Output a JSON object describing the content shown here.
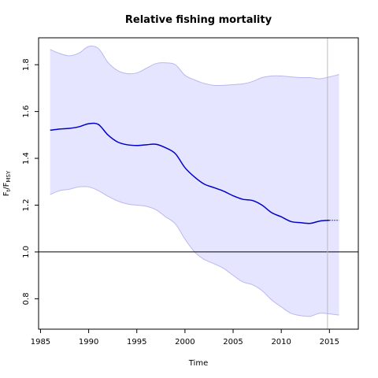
{
  "chart_data": {
    "type": "line",
    "title": "Relative fishing mortality",
    "xlabel": "Time",
    "ylabel": {
      "main": "F",
      "sub1": "t",
      "sep": "/F",
      "sub2": "MSY"
    },
    "xlim": [
      1984.8,
      2018.0
    ],
    "ylim": [
      0.67,
      1.915
    ],
    "x_ticks": [
      1985,
      1990,
      1995,
      2000,
      2005,
      2010,
      2015
    ],
    "y_ticks": [
      0.8,
      1.0,
      1.2,
      1.4,
      1.6,
      1.8
    ],
    "y_tick_labels": [
      "0.8",
      "1.0",
      "1.2",
      "1.4",
      "1.6",
      "1.8"
    ],
    "reference_line_y": 1.0,
    "vertical_line_x": 2014.8,
    "colors": {
      "line": "#0000cc",
      "band_fill": "#e5e5ff",
      "band_edge": "#b8b8f0",
      "vline": "#bbbbbb",
      "axis": "#000000"
    },
    "series": [
      {
        "role": "estimate",
        "x": [
          1986,
          1987,
          1988,
          1989,
          1990,
          1991,
          1992,
          1993,
          1994,
          1995,
          1996,
          1997,
          1998,
          1999,
          2000,
          2001,
          2002,
          2003,
          2004,
          2005,
          2006,
          2007,
          2008,
          2009,
          2010,
          2011,
          2012,
          2013,
          2014,
          2015
        ],
        "y": [
          1.52,
          1.525,
          1.528,
          1.535,
          1.548,
          1.545,
          1.5,
          1.47,
          1.458,
          1.455,
          1.458,
          1.46,
          1.445,
          1.42,
          1.36,
          1.32,
          1.29,
          1.275,
          1.26,
          1.24,
          1.225,
          1.22,
          1.2,
          1.168,
          1.15,
          1.13,
          1.125,
          1.122,
          1.132,
          1.135
        ]
      },
      {
        "role": "prediction",
        "x": [
          2015,
          2016
        ],
        "y": [
          1.135,
          1.135
        ]
      },
      {
        "role": "upper_bound",
        "x": [
          1986,
          1987,
          1988,
          1989,
          1990,
          1991,
          1992,
          1993,
          1994,
          1995,
          1996,
          1997,
          1998,
          1999,
          2000,
          2001,
          2002,
          2003,
          2004,
          2005,
          2006,
          2007,
          2008,
          2009,
          2010,
          2011,
          2012,
          2013,
          2014,
          2015,
          2016
        ],
        "y": [
          1.865,
          1.848,
          1.838,
          1.85,
          1.878,
          1.87,
          1.81,
          1.775,
          1.762,
          1.765,
          1.785,
          1.805,
          1.808,
          1.8,
          1.755,
          1.735,
          1.72,
          1.712,
          1.712,
          1.715,
          1.718,
          1.728,
          1.745,
          1.752,
          1.752,
          1.748,
          1.745,
          1.745,
          1.74,
          1.748,
          1.758
        ]
      },
      {
        "role": "lower_bound",
        "x": [
          1986,
          1987,
          1988,
          1989,
          1990,
          1991,
          1992,
          1993,
          1994,
          1995,
          1996,
          1997,
          1998,
          1999,
          2000,
          2001,
          2002,
          2003,
          2004,
          2005,
          2006,
          2007,
          2008,
          2009,
          2010,
          2011,
          2012,
          2013,
          2014,
          2015,
          2016
        ],
        "y": [
          1.245,
          1.262,
          1.268,
          1.278,
          1.278,
          1.262,
          1.238,
          1.218,
          1.205,
          1.2,
          1.195,
          1.18,
          1.15,
          1.12,
          1.055,
          1.0,
          0.968,
          0.95,
          0.93,
          0.9,
          0.872,
          0.86,
          0.835,
          0.795,
          0.765,
          0.738,
          0.728,
          0.725,
          0.738,
          0.735,
          0.73
        ]
      }
    ]
  }
}
